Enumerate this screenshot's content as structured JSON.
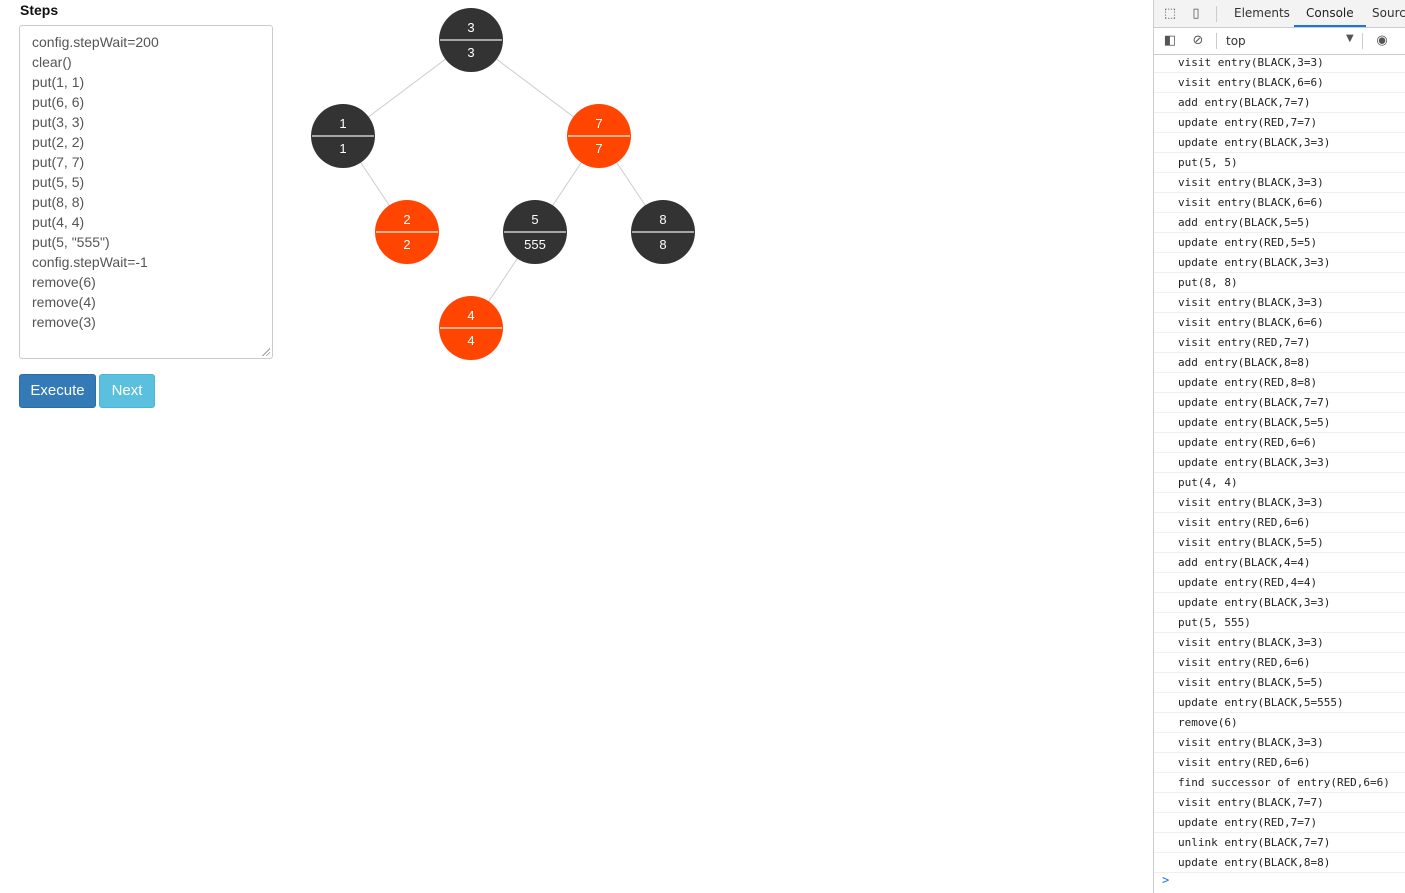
{
  "steps": {
    "title": "Steps",
    "lines": [
      "config.stepWait=200",
      "clear()",
      "put(1, 1)",
      "put(6, 6)",
      "put(3, 3)",
      "put(2, 2)",
      "put(7, 7)",
      "put(5, 5)",
      "put(8, 8)",
      "put(4, 4)",
      "put(5, \"555\")",
      "config.stepWait=-1",
      "remove(6)",
      "remove(4)",
      "remove(3)"
    ]
  },
  "buttons": {
    "execute": "Execute",
    "next": "Next"
  },
  "colors": {
    "black_node": "#333333",
    "red_node": "#ff4500",
    "edge": "#cccccc"
  },
  "tree": {
    "nodes": [
      {
        "id": "n3",
        "key": "3",
        "value": "3",
        "color": "black"
      },
      {
        "id": "n1",
        "key": "1",
        "value": "1",
        "color": "black"
      },
      {
        "id": "n7",
        "key": "7",
        "value": "7",
        "color": "red"
      },
      {
        "id": "n2",
        "key": "2",
        "value": "2",
        "color": "red"
      },
      {
        "id": "n5",
        "key": "5",
        "value": "555",
        "color": "black"
      },
      {
        "id": "n8",
        "key": "8",
        "value": "8",
        "color": "black"
      },
      {
        "id": "n4",
        "key": "4",
        "value": "4",
        "color": "red"
      }
    ],
    "edges": [
      [
        "n3",
        "n1"
      ],
      [
        "n3",
        "n7"
      ],
      [
        "n1",
        "n2"
      ],
      [
        "n7",
        "n5"
      ],
      [
        "n7",
        "n8"
      ],
      [
        "n5",
        "n4"
      ]
    ]
  },
  "devtools": {
    "tabs": [
      "Elements",
      "Console",
      "Sources"
    ],
    "active_tab": "Console",
    "context": "top",
    "console_lines": [
      "visit entry(BLACK,3=3)",
      "visit entry(BLACK,6=6)",
      "add entry(BLACK,7=7)",
      "update entry(RED,7=7)",
      "update entry(BLACK,3=3)",
      "put(5, 5)",
      "visit entry(BLACK,3=3)",
      "visit entry(BLACK,6=6)",
      "add entry(BLACK,5=5)",
      "update entry(RED,5=5)",
      "update entry(BLACK,3=3)",
      "put(8, 8)",
      "visit entry(BLACK,3=3)",
      "visit entry(BLACK,6=6)",
      "visit entry(RED,7=7)",
      "add entry(BLACK,8=8)",
      "update entry(RED,8=8)",
      "update entry(BLACK,7=7)",
      "update entry(BLACK,5=5)",
      "update entry(RED,6=6)",
      "update entry(BLACK,3=3)",
      "put(4, 4)",
      "visit entry(BLACK,3=3)",
      "visit entry(RED,6=6)",
      "visit entry(BLACK,5=5)",
      "add entry(BLACK,4=4)",
      "update entry(RED,4=4)",
      "update entry(BLACK,3=3)",
      "put(5, 555)",
      "visit entry(BLACK,3=3)",
      "visit entry(RED,6=6)",
      "visit entry(BLACK,5=5)",
      "update entry(BLACK,5=555)",
      "remove(6)",
      "visit entry(BLACK,3=3)",
      "visit entry(RED,6=6)",
      "find successor of entry(RED,6=6)",
      "visit entry(BLACK,7=7)",
      "update entry(RED,7=7)",
      "unlink entry(BLACK,7=7)",
      "update entry(BLACK,8=8)"
    ],
    "prompt": ">"
  }
}
